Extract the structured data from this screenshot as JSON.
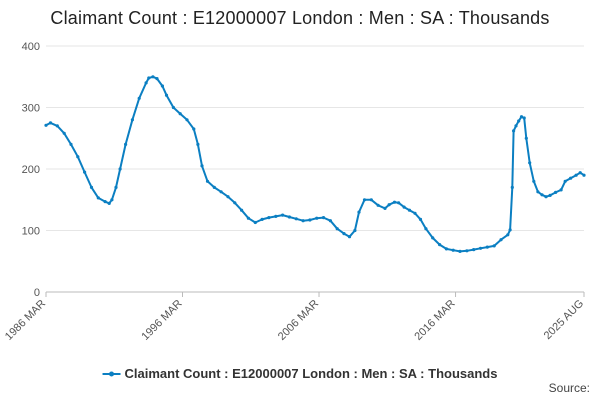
{
  "page": {
    "title": "Claimant Count : E12000007 London : Men : SA : Thousands",
    "source": "Source:"
  },
  "colors": {
    "series": "#0b7fc2",
    "grid": "#e6e6e6",
    "axis": "#bbbbbb",
    "background": "#ffffff"
  },
  "chart_data": {
    "type": "line",
    "title": "Claimant Count : E12000007 London : Men : SA : Thousands",
    "xlabel": "",
    "ylabel": "",
    "ylim": [
      0,
      400
    ],
    "yticks": [
      0,
      100,
      200,
      300,
      400
    ],
    "xlim": [
      1986.17,
      2025.58
    ],
    "xticks": [
      {
        "value": 1986.17,
        "label": "1986 MAR"
      },
      {
        "value": 1996.17,
        "label": "1996 MAR"
      },
      {
        "value": 2006.17,
        "label": "2006 MAR"
      },
      {
        "value": 2016.17,
        "label": "2016 MAR"
      },
      {
        "value": 2025.58,
        "label": "2025 AUG"
      }
    ],
    "grid": true,
    "legend": "bottom",
    "series": [
      {
        "name": "Claimant Count : E12000007 London : Men : SA : Thousands",
        "points": [
          [
            1986.17,
            271
          ],
          [
            1986.5,
            275
          ],
          [
            1987.0,
            270
          ],
          [
            1987.5,
            258
          ],
          [
            1988.0,
            240
          ],
          [
            1988.5,
            220
          ],
          [
            1989.0,
            195
          ],
          [
            1989.5,
            170
          ],
          [
            1990.0,
            153
          ],
          [
            1990.5,
            147
          ],
          [
            1990.8,
            144
          ],
          [
            1991.0,
            150
          ],
          [
            1991.3,
            170
          ],
          [
            1991.6,
            200
          ],
          [
            1992.0,
            240
          ],
          [
            1992.5,
            280
          ],
          [
            1993.0,
            315
          ],
          [
            1993.5,
            340
          ],
          [
            1993.7,
            348
          ],
          [
            1994.0,
            350
          ],
          [
            1994.3,
            347
          ],
          [
            1994.7,
            335
          ],
          [
            1995.0,
            320
          ],
          [
            1995.5,
            300
          ],
          [
            1996.0,
            290
          ],
          [
            1996.5,
            280
          ],
          [
            1997.0,
            265
          ],
          [
            1997.3,
            240
          ],
          [
            1997.6,
            205
          ],
          [
            1998.0,
            180
          ],
          [
            1998.5,
            170
          ],
          [
            1999.0,
            163
          ],
          [
            1999.5,
            155
          ],
          [
            2000.0,
            145
          ],
          [
            2000.5,
            133
          ],
          [
            2001.0,
            120
          ],
          [
            2001.5,
            113
          ],
          [
            2002.0,
            118
          ],
          [
            2002.5,
            121
          ],
          [
            2003.0,
            123
          ],
          [
            2003.5,
            125
          ],
          [
            2004.0,
            122
          ],
          [
            2004.5,
            119
          ],
          [
            2005.0,
            116
          ],
          [
            2005.5,
            117
          ],
          [
            2006.0,
            120
          ],
          [
            2006.5,
            121
          ],
          [
            2007.0,
            116
          ],
          [
            2007.5,
            103
          ],
          [
            2008.0,
            95
          ],
          [
            2008.4,
            90
          ],
          [
            2008.8,
            100
          ],
          [
            2009.1,
            130
          ],
          [
            2009.5,
            150
          ],
          [
            2010.0,
            150
          ],
          [
            2010.5,
            141
          ],
          [
            2011.0,
            136
          ],
          [
            2011.3,
            142
          ],
          [
            2011.7,
            146
          ],
          [
            2012.0,
            145
          ],
          [
            2012.4,
            138
          ],
          [
            2012.8,
            133
          ],
          [
            2013.2,
            128
          ],
          [
            2013.6,
            118
          ],
          [
            2014.0,
            103
          ],
          [
            2014.5,
            88
          ],
          [
            2015.0,
            77
          ],
          [
            2015.5,
            70
          ],
          [
            2016.0,
            68
          ],
          [
            2016.5,
            66
          ],
          [
            2017.0,
            67
          ],
          [
            2017.5,
            69
          ],
          [
            2018.0,
            71
          ],
          [
            2018.5,
            73
          ],
          [
            2019.0,
            75
          ],
          [
            2019.5,
            85
          ],
          [
            2020.0,
            93
          ],
          [
            2020.17,
            101
          ],
          [
            2020.33,
            170
          ],
          [
            2020.42,
            262
          ],
          [
            2020.6,
            270
          ],
          [
            2020.8,
            278
          ],
          [
            2021.0,
            285
          ],
          [
            2021.2,
            283
          ],
          [
            2021.35,
            250
          ],
          [
            2021.6,
            210
          ],
          [
            2021.9,
            180
          ],
          [
            2022.2,
            163
          ],
          [
            2022.5,
            158
          ],
          [
            2022.8,
            155
          ],
          [
            2023.1,
            157
          ],
          [
            2023.5,
            162
          ],
          [
            2023.9,
            166
          ],
          [
            2024.2,
            180
          ],
          [
            2024.6,
            185
          ],
          [
            2025.0,
            190
          ],
          [
            2025.3,
            194
          ],
          [
            2025.58,
            190
          ]
        ]
      }
    ]
  }
}
